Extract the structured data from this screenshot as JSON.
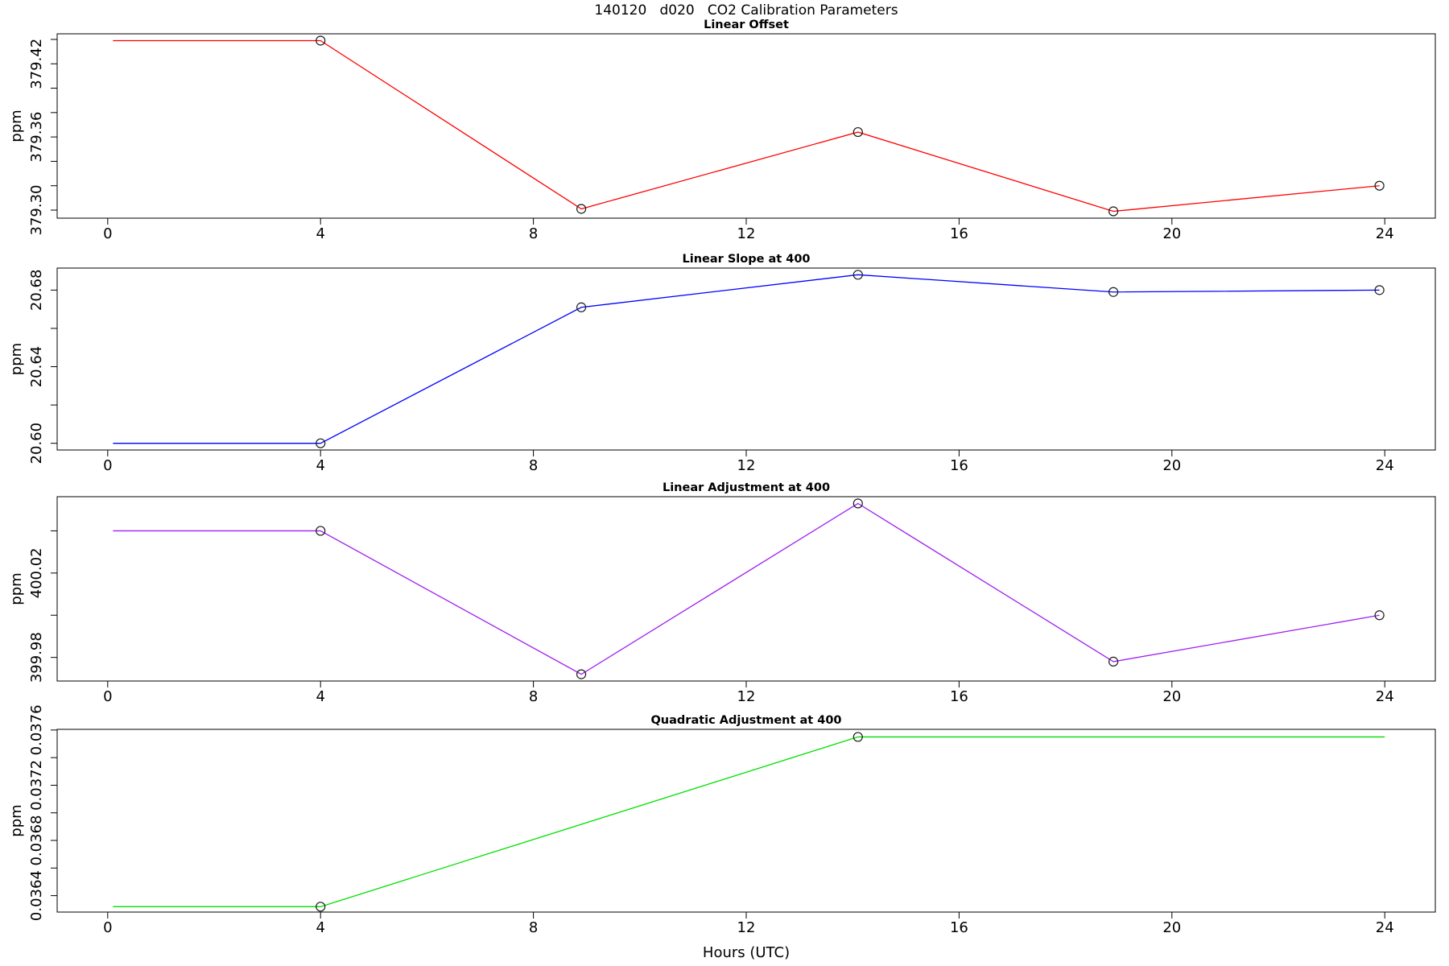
{
  "page_title": "140120   d020   CO2 Calibration Parameters",
  "x_axis_label": "Hours (UTC)",
  "chart_data": [
    {
      "type": "line",
      "title": "Linear Offset",
      "ylabel": "ppm",
      "line_color": "#ff0000",
      "marker_color": "#1a1a1a",
      "x": [
        0.1,
        4.0,
        8.9,
        14.1,
        18.9,
        23.9
      ],
      "values": [
        379.439,
        379.439,
        379.301,
        379.364,
        379.299,
        379.32
      ],
      "markers": [
        false,
        true,
        true,
        true,
        true,
        true
      ],
      "ylim": [
        379.2934,
        379.4446
      ],
      "yticks": [
        {
          "v": 379.44,
          "label": ""
        },
        {
          "v": 379.42,
          "label": "379.42"
        },
        {
          "v": 379.4,
          "label": ""
        },
        {
          "v": 379.38,
          "label": ""
        },
        {
          "v": 379.36,
          "label": "379.36"
        },
        {
          "v": 379.34,
          "label": ""
        },
        {
          "v": 379.32,
          "label": ""
        },
        {
          "v": 379.3,
          "label": "379.30"
        }
      ]
    },
    {
      "type": "line",
      "title": "Linear Slope at 400",
      "ylabel": "ppm",
      "line_color": "#0000ff",
      "marker_color": "#1a1a1a",
      "x": [
        0.1,
        4.0,
        8.9,
        14.1,
        18.9,
        23.9
      ],
      "values": [
        20.6,
        20.6,
        20.671,
        20.688,
        20.679,
        20.68
      ],
      "markers": [
        false,
        true,
        true,
        true,
        true,
        true
      ],
      "ylim": [
        20.5965,
        20.6915
      ],
      "yticks": [
        {
          "v": 20.68,
          "label": "20.68"
        },
        {
          "v": 20.66,
          "label": ""
        },
        {
          "v": 20.64,
          "label": "20.64"
        },
        {
          "v": 20.62,
          "label": ""
        },
        {
          "v": 20.6,
          "label": "20.60"
        }
      ]
    },
    {
      "type": "line",
      "title": "Linear Adjustment at 400",
      "ylabel": "ppm",
      "line_color": "#a020f0",
      "marker_color": "#1a1a1a",
      "x": [
        0.1,
        4.0,
        8.9,
        14.1,
        18.9,
        23.9
      ],
      "values": [
        400.04,
        400.04,
        399.972,
        400.053,
        399.978,
        400.0
      ],
      "markers": [
        false,
        true,
        true,
        true,
        true,
        true
      ],
      "ylim": [
        399.9688,
        400.0562
      ],
      "yticks": [
        {
          "v": 400.04,
          "label": ""
        },
        {
          "v": 400.02,
          "label": "400.02"
        },
        {
          "v": 400.0,
          "label": ""
        },
        {
          "v": 399.98,
          "label": "399.98"
        }
      ]
    },
    {
      "type": "line",
      "title": "Quadratic Adjustment at 400",
      "ylabel": "ppm",
      "line_color": "#00e000",
      "marker_color": "#1a1a1a",
      "x": [
        0.1,
        4.0,
        14.1,
        24.0
      ],
      "values": [
        0.03632,
        0.03632,
        0.03755,
        0.03755
      ],
      "markers": [
        false,
        true,
        true,
        false
      ],
      "ylim": [
        0.036281,
        0.037605
      ],
      "yticks": [
        {
          "v": 0.0376,
          "label": "0.0376"
        },
        {
          "v": 0.0374,
          "label": ""
        },
        {
          "v": 0.0372,
          "label": "0.0372"
        },
        {
          "v": 0.037,
          "label": ""
        },
        {
          "v": 0.0368,
          "label": "0.0368"
        },
        {
          "v": 0.0366,
          "label": ""
        },
        {
          "v": 0.0364,
          "label": "0.0364"
        }
      ]
    }
  ],
  "shared_x": {
    "xlim": [
      -0.95,
      24.95
    ],
    "xticks": [
      0,
      4,
      8,
      12,
      16,
      20,
      24
    ],
    "xtick_labels": [
      "0",
      "4",
      "8",
      "12",
      "16",
      "20",
      "24"
    ]
  }
}
